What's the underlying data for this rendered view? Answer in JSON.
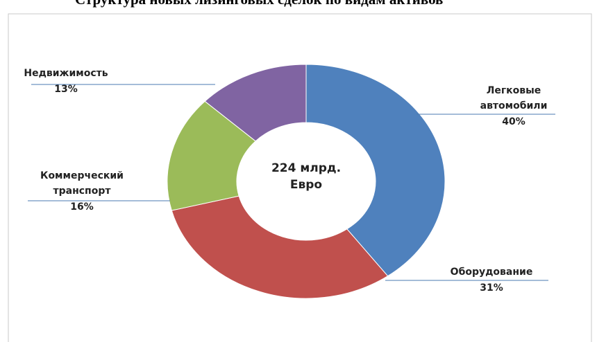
{
  "chart_data": {
    "type": "donut",
    "title": "Структура новых лизинговых сделок по видам активов",
    "center_label": "224 млрд. Евро",
    "categories": [
      "Легковые автомобили",
      "Оборудование",
      "Коммерческий транспорт",
      "Недвижимость"
    ],
    "values": [
      40,
      31,
      16,
      13
    ],
    "value_labels": [
      "40%",
      "31%",
      "16%",
      "13%"
    ],
    "colors": [
      "#4f81bd",
      "#c0504d",
      "#9bbb59",
      "#8064a2"
    ]
  }
}
